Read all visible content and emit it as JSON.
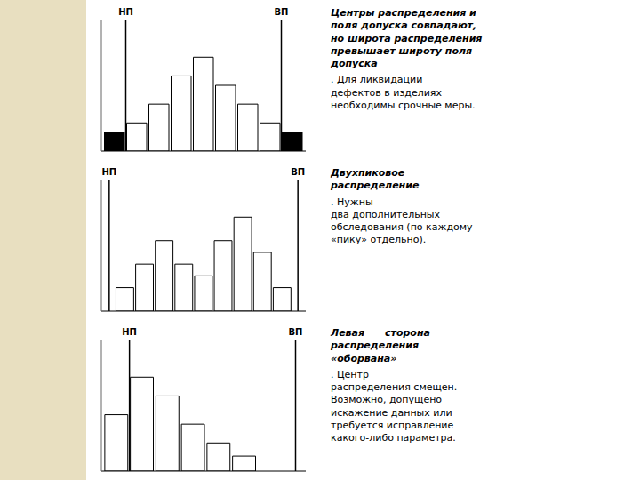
{
  "chart_data": [
    {
      "type": "bar",
      "title": "Центры распределения и\nполя допуска совпадают,\nно широта распределения\nпревышает широту поля\nдопуска",
      "subtitle": ". Для ликвидации\nдефектов в изделиях\nнеобходимы срочные меры.",
      "categories": [
        null,
        null,
        null,
        null,
        null,
        null,
        null,
        null,
        null
      ],
      "values": [
        2,
        3,
        5,
        8,
        10,
        7,
        5,
        3,
        2
      ],
      "colors": [
        "#000000",
        "#ffffff",
        "#ffffff",
        "#ffffff",
        "#ffffff",
        "#ffffff",
        "#ffffff",
        "#ffffff",
        "#000000"
      ],
      "ylim": [
        0,
        14
      ],
      "tick_labels": false,
      "grid": false,
      "annotations": [
        {
          "text": "НП",
          "x": 0.5
        },
        {
          "text": "ВП",
          "x": 7.5
        }
      ]
    },
    {
      "type": "bar",
      "title": "Двухпиковое\nраспределение",
      "subtitle": ". Нужны\nдва дополнительных\nобследования (по каждому\n«пику» отдельно).",
      "categories": [
        null,
        null,
        null,
        null,
        null,
        null,
        null,
        null,
        null
      ],
      "values": [
        1,
        2,
        3,
        2,
        1.5,
        3,
        4,
        2.5,
        1
      ],
      "color": "#ffffff",
      "ylim": [
        0,
        5.6
      ],
      "tick_labels": false,
      "grid": false,
      "annotations": [
        {
          "text": "НП",
          "x": -0.8
        },
        {
          "text": "ВП",
          "x": 8.8
        }
      ]
    },
    {
      "type": "bar",
      "title": "Левая      сторона\nраспределения\n«оборвана»",
      "subtitle": ". Центр\nраспределения смещен.\nВозможно, допущено\nискажение данных или\nтребуется исправление\nкакого-либо параметра.",
      "categories": [
        null,
        null,
        null,
        null,
        null,
        null
      ],
      "values": [
        3,
        5,
        4,
        2.5,
        1.5,
        0.8
      ],
      "color": "#ffffff",
      "ylim": [
        0,
        7
      ],
      "tick_labels": false,
      "grid": false,
      "annotations": [
        {
          "text": "НП",
          "x": 0.5
        },
        {
          "text": "ВП",
          "x": 7
        }
      ]
    }
  ]
}
